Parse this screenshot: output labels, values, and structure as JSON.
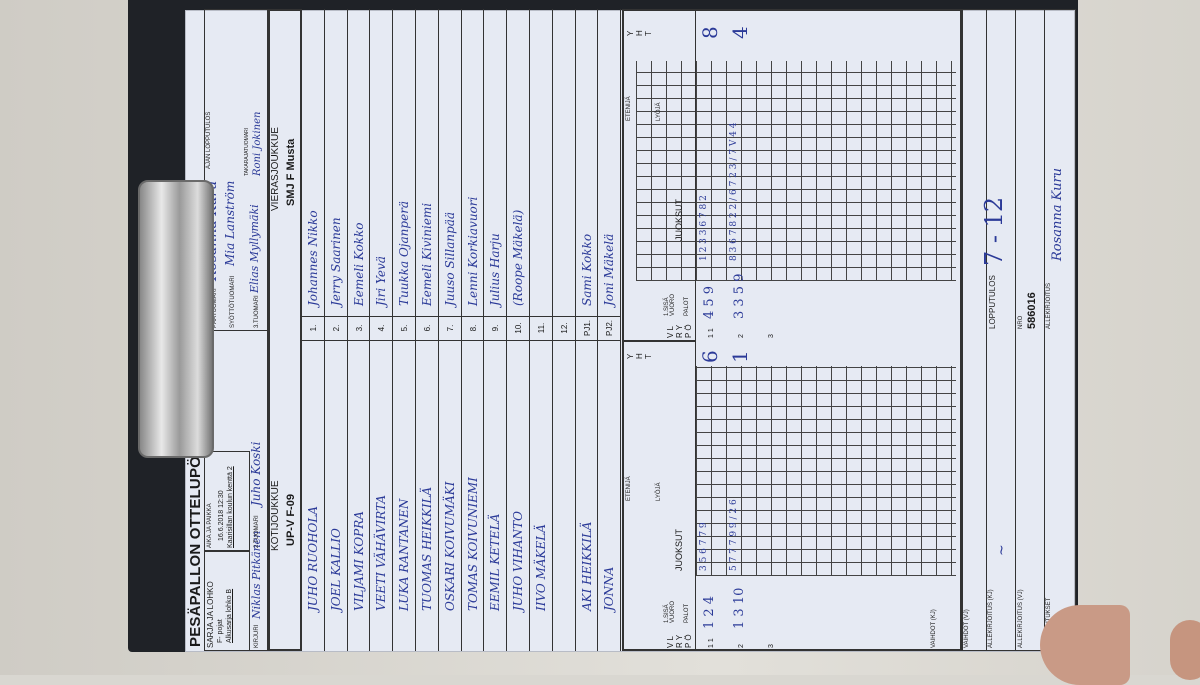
{
  "form": {
    "title": "PESÄPALLON OTTELUPÖYTÄKIRJA",
    "header": {
      "sarja_label": "SARJA JA LOHKO",
      "sarja_value1": "F- pojat",
      "sarja_value2": "Alkusarja lohko B",
      "aika_label": "AIKA JA PAIKKA",
      "aika_value1": "16.6.2018 12:30",
      "aika_value2": "Kaarisillan koulun kenttä 2",
      "ajan_label": "Ajan lopputulos",
      "kirjuri_label": "KIRJURI",
      "kirjuri_value": "Niklas Pitkänen",
      "tuomari2_label": "2.TUOMARI",
      "tuomari2_value": "Juho Koski",
      "paatuomari_label": "PÄÄTUOMARI",
      "paatuomari_value": "Rosanna Kuru",
      "syottotuomari_label": "SYÖTTÖTUOMARI",
      "syottotuomari_value": "Mia Lanström",
      "tuomari3_label": "3.TUOMARI",
      "tuomari3_value": "Elias Myllymäki",
      "takaraja_label": "TAKARAJATUOMARI",
      "takaraja_value": "Roni Jokinen"
    },
    "home": {
      "label": "KOTIJOUKKUE",
      "name": "UP-V F-09",
      "players": [
        "JUHO RUOHOLA",
        "JOEL KALLIO",
        "VILJAMI KOPRA",
        "VEETI VÄHÄVIRTA",
        "LUKA RANTANEN",
        "TUOMAS HEIKKILÄ",
        "OSKARI KOIVUMÄKI",
        "TOMAS KOIVUNIEMI",
        "EEMIL KETELÄ",
        "JUHO VIHANTO",
        "IIVO MÄKELÄ",
        "",
        "AKI HEIKKILÄ",
        "JONNA"
      ]
    },
    "away": {
      "label": "VIERASJOUKKUE",
      "name": "SMJ F Musta",
      "players": [
        "Johannes Nikko",
        "Jerry Saarinen",
        "Eemeli Kokko",
        "Jiri Yevä",
        "Tuukka Ojanperä",
        "Eemeli Kiviniemi",
        "Juuso Sillanpää",
        "Lenni Korkiavuori",
        "Julius Harju",
        "(Roope Mäkelä)",
        "",
        "",
        "Sami Kokko",
        "Joni Mäkelä"
      ]
    },
    "row_numbers": [
      "1.",
      "2.",
      "3.",
      "4.",
      "5.",
      "6.",
      "7.",
      "8.",
      "9.",
      "10.",
      "11.",
      "12.",
      "PJ1.",
      "PJ2."
    ],
    "score_labels": {
      "vrp": "V L\nR Y\nP Ö",
      "sisa": "1.SISÄ VUORO",
      "palot": "PALOT",
      "juoksut": "JUOKSUT",
      "etenija": "ETENIJÄ",
      "lyoja": "LYÖJÄ",
      "yht": "Y H T"
    },
    "home_score": {
      "rows": [
        {
          "n": "1 1",
          "palot": "1 2 4",
          "juoksut": "3 5 6 7 7 9",
          "yht": "6"
        },
        {
          "n": "2",
          "palot": "1 3 10",
          "juoksut": "5 7 7 7 9 9 / 2 6",
          "yht": "1"
        },
        {
          "n": "3",
          "palot": "",
          "juoksut": "",
          "yht": ""
        }
      ]
    },
    "away_score": {
      "rows": [
        {
          "n": "1 1",
          "palot": "4 5 9",
          "juoksut": "1 2 3 3 6 7 8 2",
          "yht": "8"
        },
        {
          "n": "2",
          "palot": "3 3 5 9",
          "juoksut": "8 3 6 7 8 2 2 / 6 7 2 3 / 7 V 4 4",
          "yht": "4"
        },
        {
          "n": "3",
          "palot": "",
          "juoksut": "",
          "yht": ""
        }
      ]
    },
    "footer": {
      "vaihdot_kj": "VAIHDOT (KJ)",
      "vaihdot_vj": "VAIHDOT (VJ)",
      "allekirjoitus_kj": "ALLEKIRJOITUS (KJ)",
      "allekirjoitus_vj": "ALLEKIRJOITUS (VJ)",
      "huomautukset": "HUOMAUTUKSET",
      "lopputulos_label": "LOPPUTULOS",
      "lopputulos_value": "7 - 12",
      "nro_label": "NRO",
      "nro_value": "586016",
      "allekirjoitus_label": "ALLEKIRJOITUS",
      "allekirjoitus_value": "Rosanna Kuru"
    }
  },
  "colors": {
    "paper": "#e6eaf3",
    "ink": "#2b3a98",
    "clipboard": "#1f2227"
  }
}
